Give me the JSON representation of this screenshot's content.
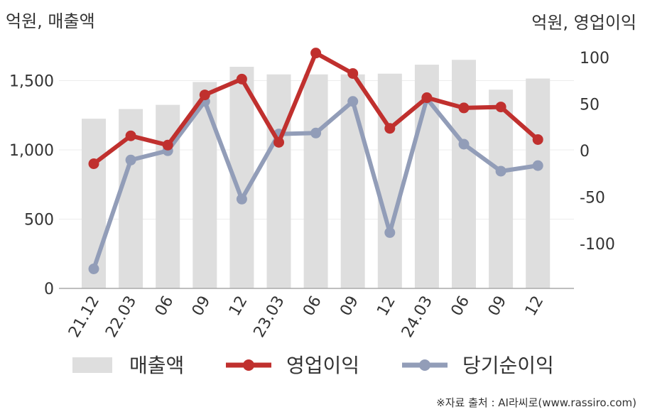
{
  "chart_data": {
    "type": "bar",
    "left_axis_unit": "억원, 매출액",
    "right_axis_unit": "억원, 영업이익",
    "categories": [
      "21.12",
      "22.03",
      "06",
      "09",
      "12",
      "23.03",
      "06",
      "09",
      "12",
      "24.03",
      "06",
      "09",
      "12"
    ],
    "left_axis": {
      "ylim": [
        0,
        1800
      ],
      "ticks": [
        "0",
        "500",
        "1,000",
        "1,500"
      ],
      "tick_values": [
        0,
        500,
        1000,
        1500
      ]
    },
    "right_axis": {
      "ylim": [
        -148,
        120
      ],
      "ticks": [
        "-100",
        "-50",
        "0",
        "50",
        "100"
      ],
      "tick_values": [
        -100,
        -50,
        0,
        50,
        100
      ]
    },
    "series": [
      {
        "name": "매출액",
        "type": "bar",
        "axis": "left",
        "color": "#dedede",
        "values": [
          1225,
          1295,
          1325,
          1490,
          1600,
          1545,
          1545,
          1545,
          1550,
          1615,
          1650,
          1435,
          1515
        ]
      },
      {
        "name": "영업이익",
        "type": "line",
        "axis": "right",
        "color": "#c0302e",
        "values": [
          -14,
          16,
          6,
          60,
          77,
          9,
          105,
          83,
          24,
          57,
          46,
          47,
          12
        ]
      },
      {
        "name": "당기순이익",
        "type": "line",
        "axis": "right",
        "color": "#929db8",
        "values": [
          -127,
          -10,
          0,
          53,
          -52,
          18,
          19,
          53,
          -88,
          56,
          7,
          -22,
          -16
        ]
      }
    ],
    "source_note": "※자료 출처 : AI라씨로(www.rassiro.com)"
  }
}
